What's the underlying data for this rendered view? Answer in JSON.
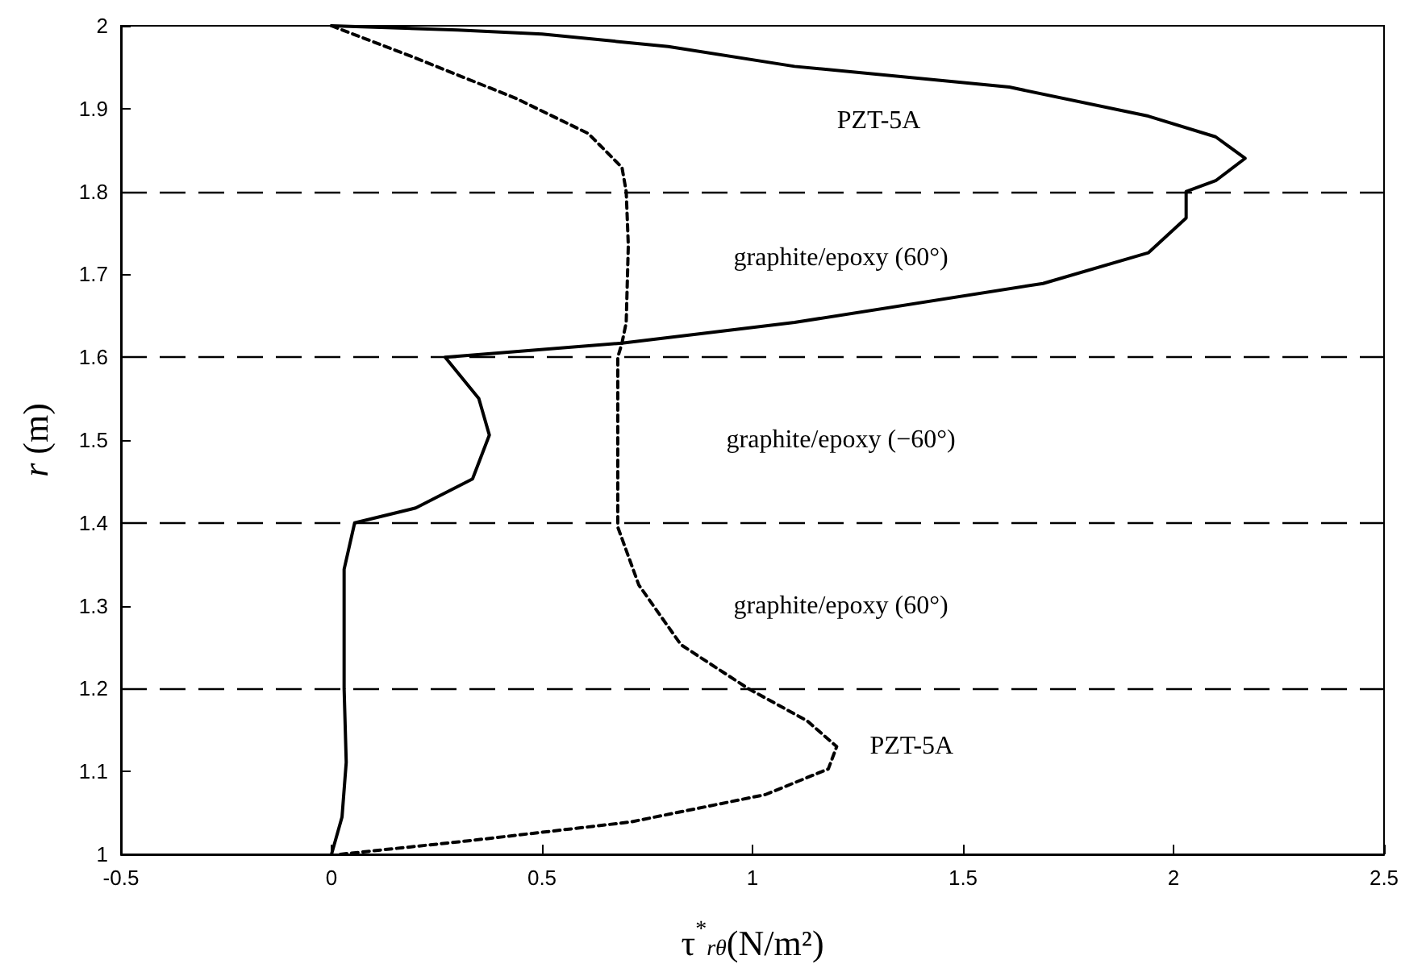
{
  "chart_data": {
    "type": "line",
    "xlabel": "τ$^{*}$$_{rθ}$(N/m²)",
    "ylabel": "r (m)",
    "xlim": [
      -0.5,
      2.5
    ],
    "xticks": [
      {
        "value": -0.5,
        "label": "-0.5"
      },
      0,
      0.5,
      1,
      1.5,
      2,
      2.5
    ],
    "ylim": [
      1,
      2
    ],
    "yticks": [
      1,
      1.1,
      1.2,
      1.3,
      1.4,
      1.5,
      1.6,
      1.7,
      1.8,
      1.9,
      2
    ],
    "grid": false,
    "marker": "none",
    "series": [
      {
        "color": "#000000",
        "line_style": "solid",
        "x": [
          0,
          0.3,
          0.5,
          0.8,
          1.1,
          1.61,
          1.94,
          2.1,
          2.17,
          2.1,
          2.03,
          2.03,
          1.94,
          1.69,
          1.1,
          0.69,
          0.27,
          0.35,
          0.375,
          0.335,
          0.2,
          0.055,
          0.03,
          0.03,
          0.035,
          0.025,
          0
        ],
        "values": [
          2,
          1.995,
          1.99,
          1.975,
          1.951,
          1.926,
          1.891,
          1.866,
          1.84,
          1.813,
          1.8,
          1.768,
          1.726,
          1.689,
          1.642,
          1.617,
          1.6,
          1.55,
          1.506,
          1.453,
          1.418,
          1.4,
          1.344,
          1.2,
          1.111,
          1.045,
          1
        ]
      },
      {
        "color": "#000000",
        "line_style": "dashed",
        "x": [
          0,
          0.19,
          0.44,
          0.61,
          0.69,
          0.7,
          0.705,
          0.7,
          0.69,
          0.68,
          0.68,
          0.68,
          0.73,
          0.83,
          0.99,
          1.13,
          1.2,
          1.18,
          1.03,
          0.71,
          0.32,
          0.02
        ],
        "values": [
          2,
          1.963,
          1.912,
          1.87,
          1.829,
          1.8,
          1.735,
          1.642,
          1.617,
          1.6,
          1.41,
          1.395,
          1.325,
          1.253,
          1.2,
          1.161,
          1.13,
          1.103,
          1.072,
          1.039,
          1.016,
          1
        ]
      }
    ],
    "ref_lines": [
      {
        "axis": "y",
        "value": 1.8,
        "color": "#000000",
        "line_style": "dashed"
      },
      {
        "axis": "y",
        "value": 1.6,
        "color": "#000000",
        "line_style": "dashed"
      },
      {
        "axis": "y",
        "value": 1.4,
        "color": "#000000",
        "line_style": "dashed"
      },
      {
        "axis": "y",
        "value": 1.2,
        "color": "#000000",
        "line_style": "dashed"
      }
    ],
    "annotations": [
      "PZT-5A",
      "graphite/epoxy (60°)",
      "graphite/epoxy (−60°)",
      "graphite/epoxy (60°)",
      "PZT-5A"
    ]
  }
}
